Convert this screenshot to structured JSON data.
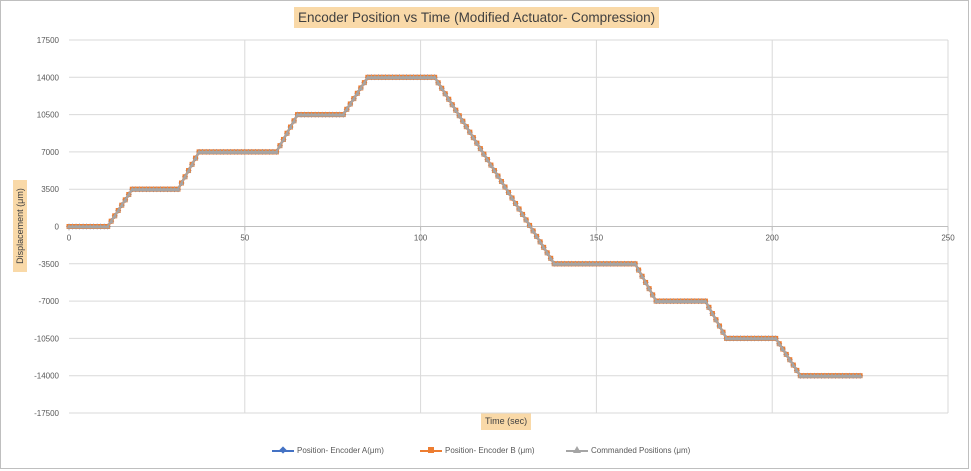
{
  "chart_data": {
    "type": "line",
    "title": "Encoder Position vs Time (Modified Actuator- Compression)",
    "xlabel": "Time (sec)",
    "ylabel": "Displacement  (μm)",
    "xlim": [
      0,
      250
    ],
    "ylim": [
      -17500,
      17500
    ],
    "x_ticks": [
      0,
      50,
      100,
      150,
      200,
      250
    ],
    "y_ticks": [
      17500,
      14000,
      10500,
      7000,
      3500,
      0,
      -3500,
      -7000,
      -10500,
      -14000,
      -17500
    ],
    "grid": true,
    "legend_position": "bottom",
    "series": [
      {
        "name": "Position- Encoder A(μm)",
        "color": "#4472c4",
        "marker": "diamond",
        "x": [
          0,
          11,
          18,
          31,
          37,
          59,
          65,
          78,
          85,
          104,
          138,
          161,
          167,
          181,
          187,
          201,
          208,
          225
        ],
        "y": [
          0,
          0,
          3500,
          3500,
          7000,
          7000,
          10500,
          10500,
          14000,
          14000,
          -3500,
          -3500,
          -7000,
          -7000,
          -10500,
          -10500,
          -14000,
          -14000
        ]
      },
      {
        "name": "Position- Encoder B (μm)",
        "color": "#ed7d31",
        "marker": "square",
        "x": [
          0,
          11,
          18,
          31,
          37,
          59,
          65,
          78,
          85,
          104,
          138,
          161,
          167,
          181,
          187,
          201,
          208,
          225
        ],
        "y": [
          0,
          0,
          3500,
          3500,
          7000,
          7000,
          10500,
          10500,
          14000,
          14000,
          -3500,
          -3500,
          -7000,
          -7000,
          -10500,
          -10500,
          -14000,
          -14000
        ]
      },
      {
        "name": "Commanded Positions (μm)",
        "color": "#a5a5a5",
        "marker": "triangle",
        "x": [
          0,
          11,
          18,
          31,
          37,
          59,
          65,
          78,
          85,
          104,
          138,
          161,
          167,
          181,
          187,
          201,
          208,
          225
        ],
        "y": [
          0,
          0,
          3500,
          3500,
          7000,
          7000,
          10500,
          10500,
          14000,
          14000,
          -3500,
          -3500,
          -7000,
          -7000,
          -10500,
          -10500,
          -14000,
          -14000
        ]
      }
    ]
  }
}
